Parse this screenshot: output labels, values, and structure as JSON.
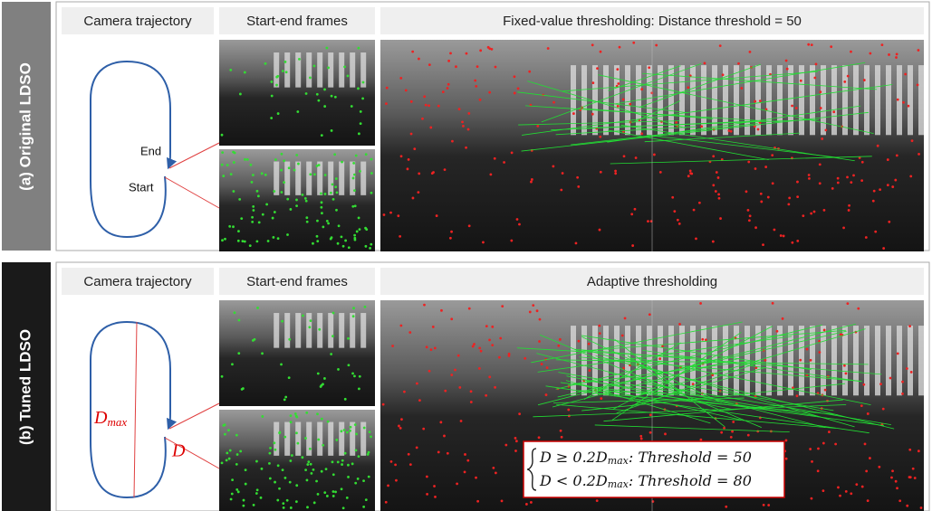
{
  "panels": [
    {
      "label": "(a) Original LDSO",
      "headers": [
        "Camera trajectory",
        "Start-end frames",
        "Fixed-value thresholding: Distance threshold = 50"
      ],
      "trajectory_labels": [
        "End",
        "Start"
      ]
    },
    {
      "label": "(b) Tuned LDSO",
      "headers": [
        "Camera trajectory",
        "Start-end frames",
        "Adaptive thresholding"
      ],
      "diameter_label": {
        "symbol": "D",
        "subscript": "max"
      },
      "distance_label": "D",
      "formula": [
        {
          "lhs": "D ≥ 0.2D",
          "subscript": "max",
          "rhs": ": Threshold = 50"
        },
        {
          "lhs": "D < 0.2D",
          "subscript": "max",
          "rhs": ": Threshold = 80"
        }
      ]
    }
  ]
}
